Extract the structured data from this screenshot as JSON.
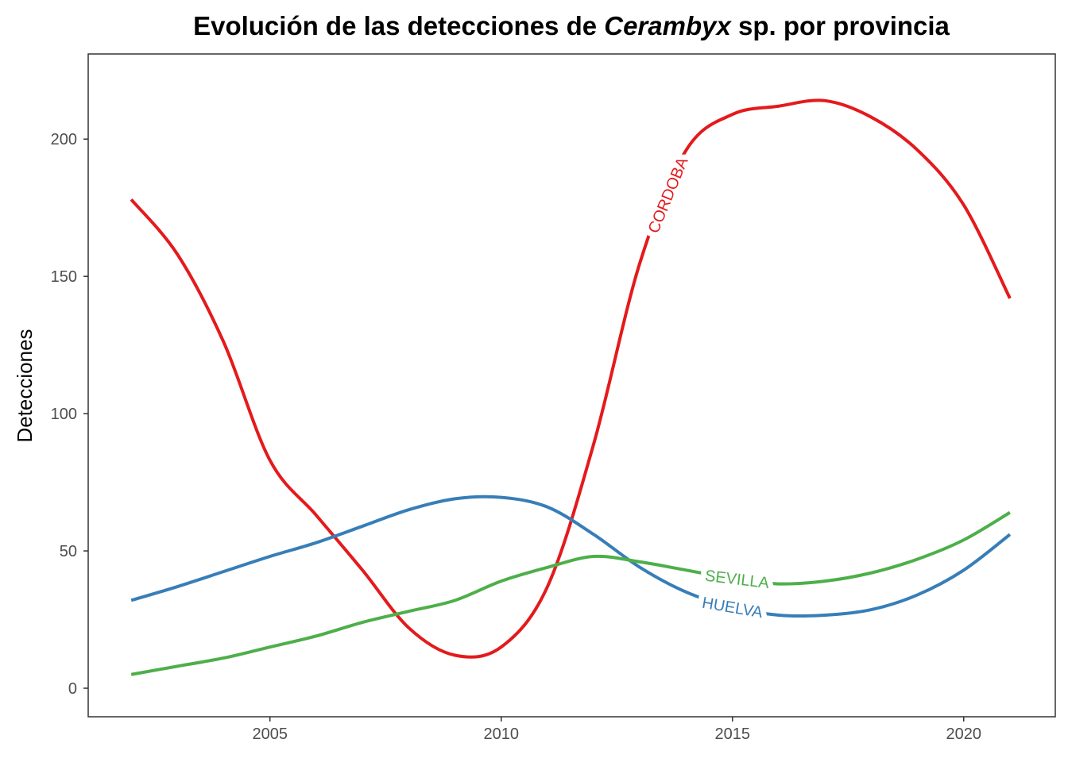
{
  "chart_data": {
    "type": "line",
    "title_parts": [
      "Evolución de las detecciones de ",
      "Cerambyx",
      " sp. por provincia"
    ],
    "xlabel": "",
    "ylabel": "Detecciones",
    "xlim": [
      2001.07,
      2021.98
    ],
    "ylim": [
      -10.4,
      231
    ],
    "xticks": [
      2005,
      2010,
      2015,
      2020
    ],
    "yticks": [
      0,
      50,
      100,
      150,
      200
    ],
    "grid": false,
    "x": [
      2002,
      2003,
      2004,
      2005,
      2006,
      2007,
      2008,
      2009,
      2010,
      2011,
      2012,
      2013,
      2014,
      2015,
      2016,
      2017,
      2018,
      2019,
      2020,
      2021
    ],
    "series": [
      {
        "name": "CORDOBA",
        "color": "#E41A1C",
        "label_x": 2013.6,
        "values": [
          178,
          158,
          126,
          83,
          63,
          43,
          22,
          12,
          15,
          37,
          89,
          155,
          196,
          209,
          212,
          214,
          208,
          196,
          176,
          142
        ]
      },
      {
        "name": "HUELVA",
        "color": "#377EB8",
        "label_x": 2015.0,
        "values": [
          32,
          37,
          42.5,
          48,
          53,
          59,
          65,
          69,
          69.5,
          66,
          56,
          44,
          35,
          29.5,
          26.6,
          26.6,
          28.6,
          34,
          43,
          56
        ]
      },
      {
        "name": "SEVILLA",
        "color": "#4DAF4A",
        "label_x": 2015.1,
        "values": [
          5,
          8,
          11,
          15,
          19,
          24,
          28,
          32,
          39,
          44,
          48,
          46,
          43,
          40,
          38,
          39,
          42,
          47,
          54,
          64
        ]
      }
    ]
  }
}
